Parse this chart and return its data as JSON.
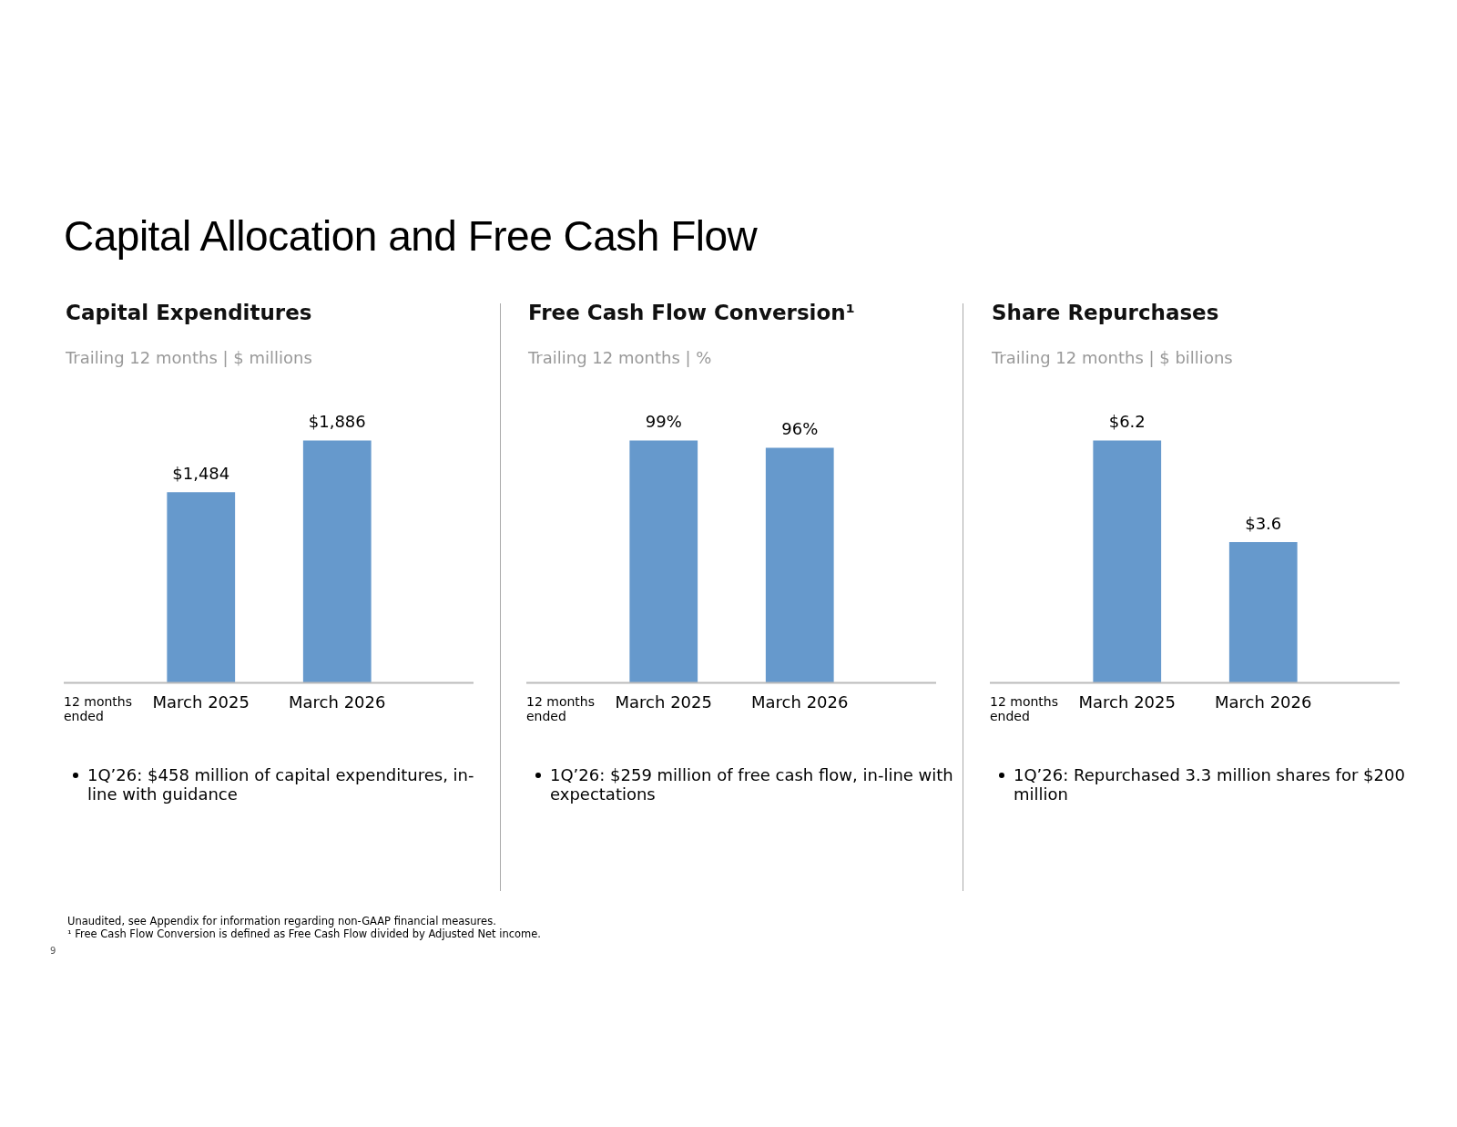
{
  "chart_data": [
    {
      "type": "bar",
      "title": "Capital Expenditures",
      "subtitle": "Trailing 12 months | $ millions",
      "xlabel": "12 months ended",
      "categories": [
        "March 2025",
        "March 2026"
      ],
      "values": [
        1484,
        1886
      ],
      "value_labels": [
        "$1,484",
        "$1,886"
      ],
      "color": "#6699cc",
      "grid": false,
      "legend": false,
      "annotations": [
        "Capital Allocation and Free Cash Flow",
        "1Q’26: $458 million of capital expenditures, in-line with guidance",
        "Unaudited, see Appendix for information regarding non-GAAP financial measures.",
        "¹ Free Cash Flow Conversion is defined as Free Cash Flow divided by Adjusted Net income.",
        "9"
      ]
    },
    {
      "type": "bar",
      "title": "Free Cash Flow Conversion¹",
      "subtitle": "Trailing 12 months | %",
      "xlabel": "12 months ended",
      "categories": [
        "March 2025",
        "March 2026"
      ],
      "values": [
        99,
        96
      ],
      "value_labels": [
        "99%",
        "96%"
      ],
      "color": "#6699cc",
      "grid": false,
      "legend": false,
      "annotations": [
        "1Q’26: $259 million of free cash flow, in-line with expectations"
      ]
    },
    {
      "type": "bar",
      "title": "Share Repurchases",
      "subtitle": "Trailing 12 months | $ billions",
      "xlabel": "12 months ended",
      "categories": [
        "March 2025",
        "March 2026"
      ],
      "values": [
        6.2,
        3.6
      ],
      "value_labels": [
        "$6.2",
        "$3.6"
      ],
      "color": "#6699cc",
      "grid": false,
      "legend": false,
      "annotations": [
        "1Q’26: Repurchased 3.3 million shares for $200 million"
      ]
    }
  ]
}
